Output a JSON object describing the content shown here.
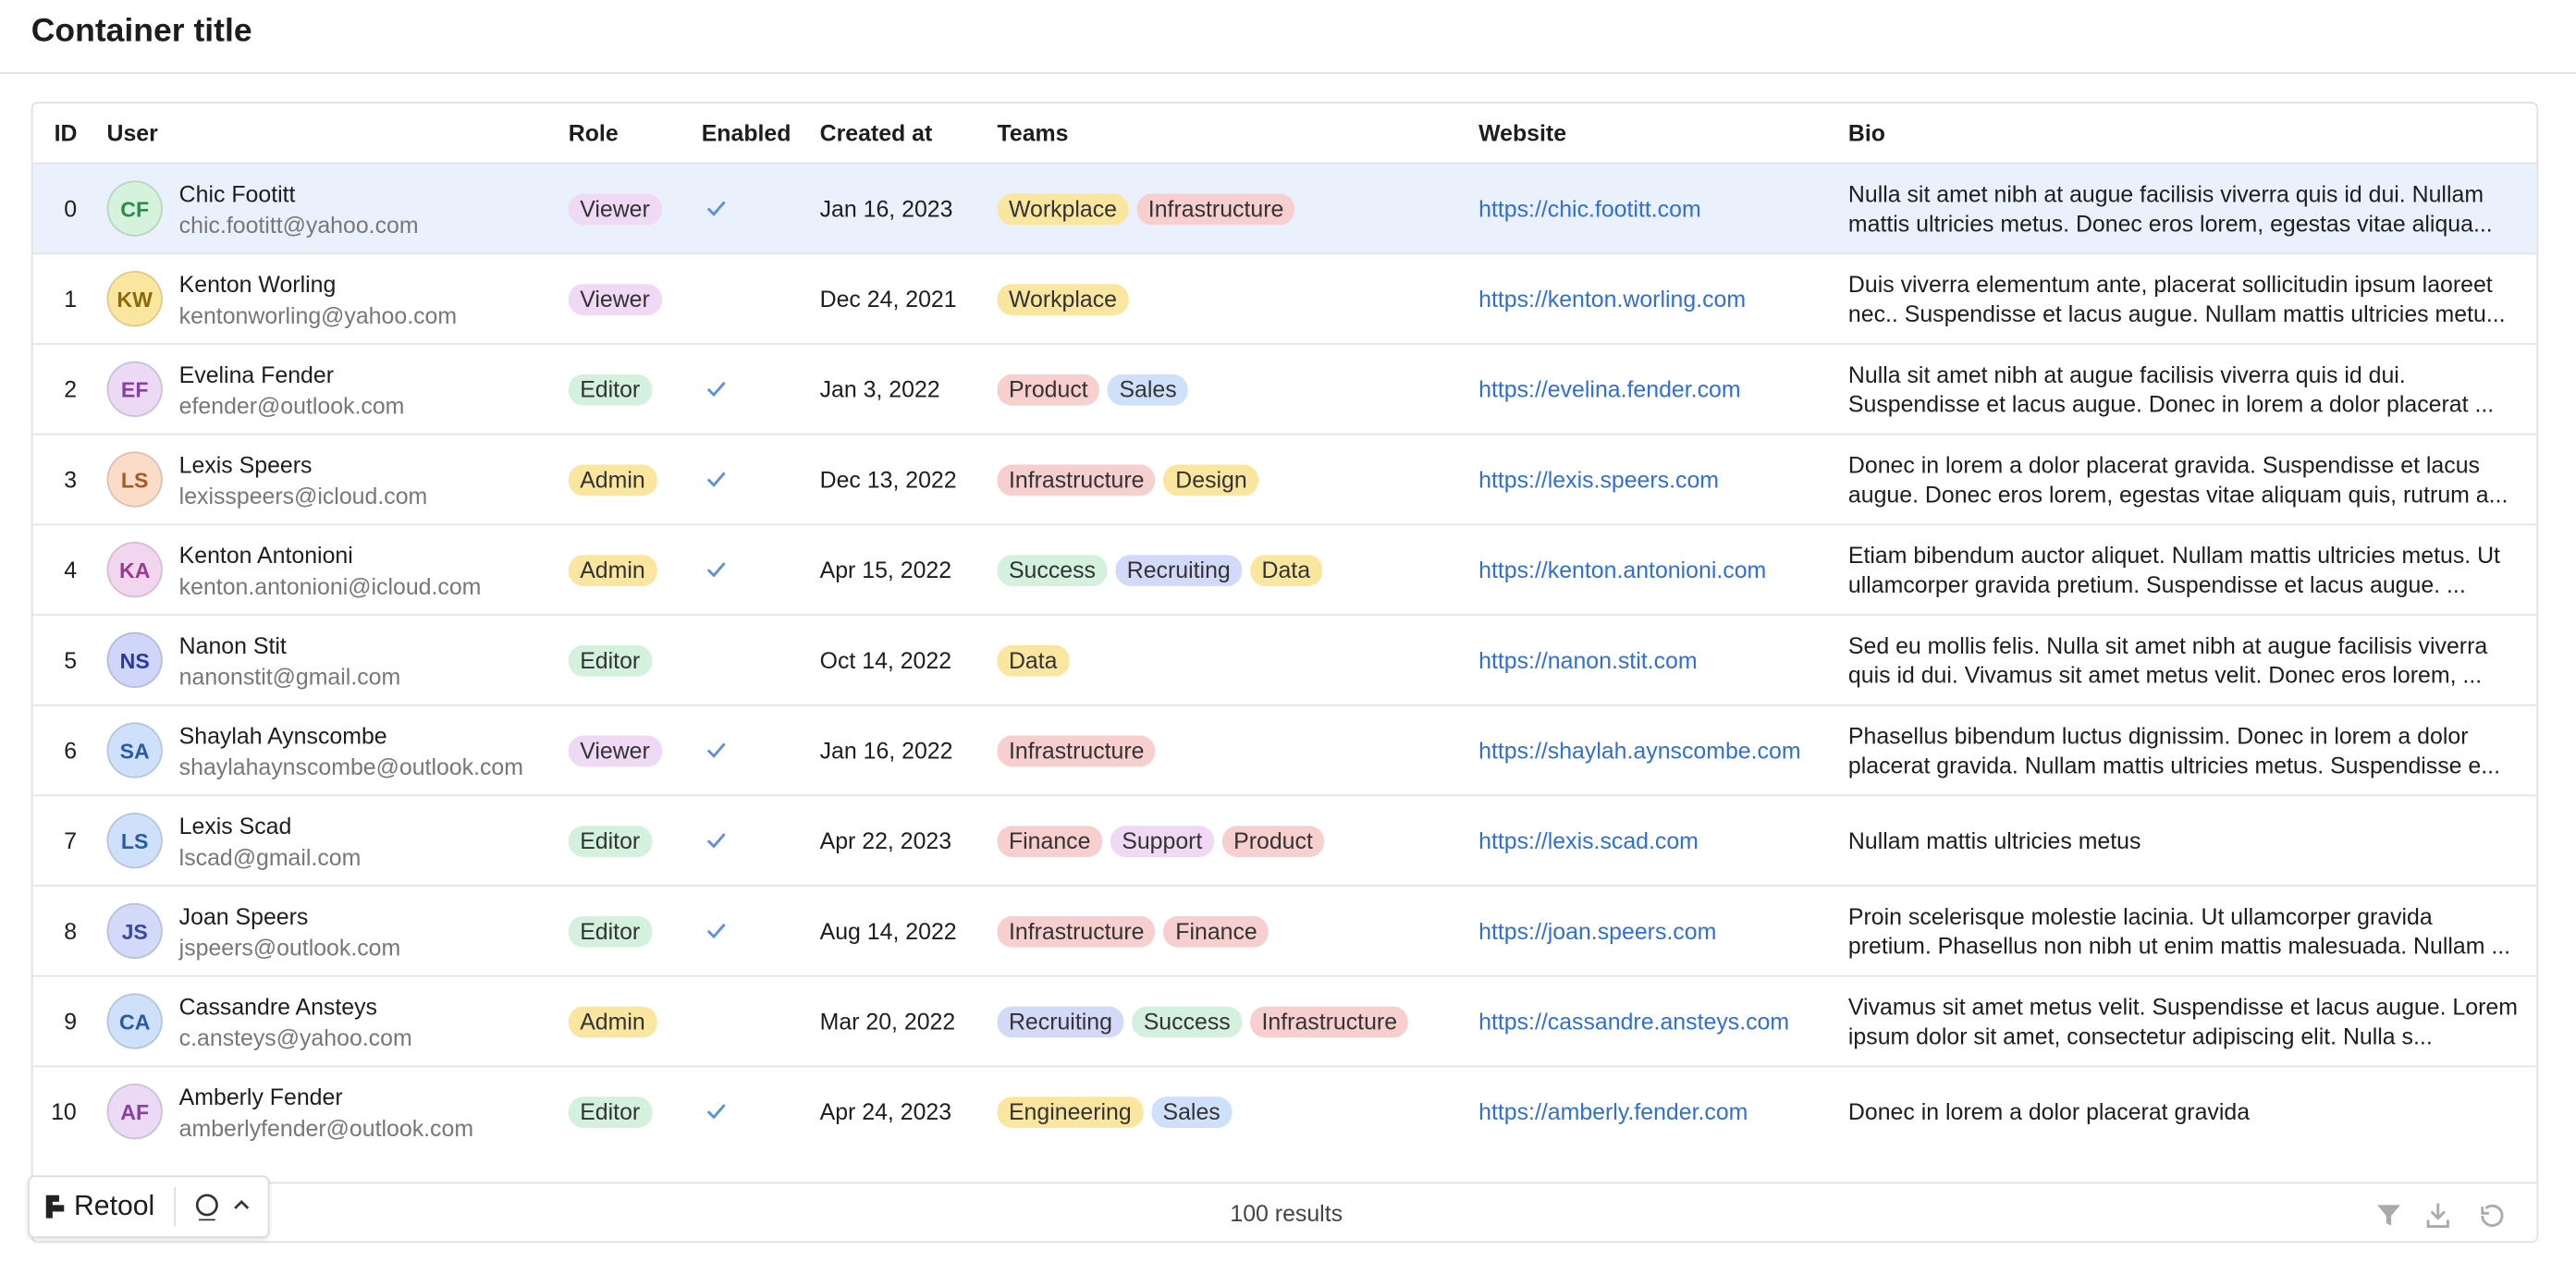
{
  "header": {
    "title": "Container title"
  },
  "table": {
    "columns": [
      "ID",
      "User",
      "Role",
      "Enabled",
      "Created at",
      "Teams",
      "Website",
      "Bio"
    ],
    "rows": [
      {
        "id": "0",
        "initials": "CF",
        "color": "#d5f2dc",
        "ink": "#2d8a4a",
        "name": "Chic Footitt",
        "email": "chic.footitt@yahoo.com",
        "role": {
          "text": "Viewer",
          "color": "#f0d9f5"
        },
        "enabled": true,
        "created": "Jan 16, 2023",
        "teams": [
          {
            "text": "Workplace",
            "color": "#fbe6a0"
          },
          {
            "text": "Infrastructure",
            "color": "#f8cfcf"
          }
        ],
        "website": "https://chic.footitt.com",
        "bio": "Nulla sit amet nibh at augue facilisis viverra quis id dui. Nullam mattis ultricies metus. Donec eros lorem, egestas vitae aliqua..."
      },
      {
        "id": "1",
        "initials": "KW",
        "color": "#fbe6a0",
        "ink": "#8a6a10",
        "name": "Kenton Worling",
        "email": "kentonworling@yahoo.com",
        "role": {
          "text": "Viewer",
          "color": "#f0d9f5"
        },
        "enabled": false,
        "created": "Dec 24, 2021",
        "teams": [
          {
            "text": "Workplace",
            "color": "#fbe6a0"
          }
        ],
        "website": "https://kenton.worling.com",
        "bio": "Duis viverra elementum ante, placerat sollicitudin ipsum laoreet nec.. Suspendisse et lacus augue. Nullam mattis ultricies metu..."
      },
      {
        "id": "2",
        "initials": "EF",
        "color": "#ecd9f5",
        "ink": "#8a3fa8",
        "name": "Evelina Fender",
        "email": "efender@outlook.com",
        "role": {
          "text": "Editor",
          "color": "#d3f1dc"
        },
        "enabled": true,
        "created": "Jan 3, 2022",
        "teams": [
          {
            "text": "Product",
            "color": "#f8cfcf"
          },
          {
            "text": "Sales",
            "color": "#cfe0fa"
          }
        ],
        "website": "https://evelina.fender.com",
        "bio": "Nulla sit amet nibh at augue facilisis viverra quis id dui. Suspendisse et lacus augue. Donec in lorem a dolor placerat ..."
      },
      {
        "id": "3",
        "initials": "LS",
        "color": "#fbdcc8",
        "ink": "#a85a20",
        "name": "Lexis Speers",
        "email": "lexisspeers@icloud.com",
        "role": {
          "text": "Admin",
          "color": "#fbe6a0"
        },
        "enabled": true,
        "created": "Dec 13, 2022",
        "teams": [
          {
            "text": "Infrastructure",
            "color": "#f8cfcf"
          },
          {
            "text": "Design",
            "color": "#fbe6a0"
          }
        ],
        "website": "https://lexis.speers.com",
        "bio": "Donec in lorem a dolor placerat gravida. Suspendisse et lacus augue. Donec eros lorem, egestas vitae aliquam quis, rutrum a..."
      },
      {
        "id": "4",
        "initials": "KA",
        "color": "#f2d6f0",
        "ink": "#9a3a8e",
        "name": "Kenton Antonioni",
        "email": "kenton.antonioni@icloud.com",
        "role": {
          "text": "Admin",
          "color": "#fbe6a0"
        },
        "enabled": true,
        "created": "Apr 15, 2022",
        "teams": [
          {
            "text": "Success",
            "color": "#d3f1dc"
          },
          {
            "text": "Recruiting",
            "color": "#d3d9f8"
          },
          {
            "text": "Data",
            "color": "#fbe6a0"
          }
        ],
        "website": "https://kenton.antonioni.com",
        "bio": "Etiam bibendum auctor aliquet. Nullam mattis ultricies metus. Ut ullamcorper gravida pretium. Suspendisse et lacus augue. ..."
      },
      {
        "id": "5",
        "initials": "NS",
        "color": "#cfd6fa",
        "ink": "#2a3a9a",
        "name": "Nanon Stit",
        "email": "nanonstit@gmail.com",
        "role": {
          "text": "Editor",
          "color": "#d3f1dc"
        },
        "enabled": false,
        "created": "Oct 14, 2022",
        "teams": [
          {
            "text": "Data",
            "color": "#fbe6a0"
          }
        ],
        "website": "https://nanon.stit.com",
        "bio": "Sed eu mollis felis. Nulla sit amet nibh at augue facilisis viverra quis id dui. Vivamus sit amet metus velit. Donec eros lorem, ..."
      },
      {
        "id": "6",
        "initials": "SA",
        "color": "#cfe0fa",
        "ink": "#2a5aa8",
        "name": "Shaylah Aynscombe",
        "email": "shaylahaynscombe@outlook.com",
        "role": {
          "text": "Viewer",
          "color": "#f0d9f5"
        },
        "enabled": true,
        "created": "Jan 16, 2022",
        "teams": [
          {
            "text": "Infrastructure",
            "color": "#f8cfcf"
          }
        ],
        "website": "https://shaylah.aynscombe.com",
        "bio": "Phasellus bibendum luctus dignissim. Donec in lorem a dolor placerat gravida. Nullam mattis ultricies metus. Suspendisse e..."
      },
      {
        "id": "7",
        "initials": "LS",
        "color": "#cfe0fa",
        "ink": "#2a5aa8",
        "name": "Lexis Scad",
        "email": "lscad@gmail.com",
        "role": {
          "text": "Editor",
          "color": "#d3f1dc"
        },
        "enabled": true,
        "created": "Apr 22, 2023",
        "teams": [
          {
            "text": "Finance",
            "color": "#f8cfcf"
          },
          {
            "text": "Support",
            "color": "#f0d9f5"
          },
          {
            "text": "Product",
            "color": "#f8cfcf"
          }
        ],
        "website": "https://lexis.scad.com",
        "bio": "Nullam mattis ultricies metus"
      },
      {
        "id": "8",
        "initials": "JS",
        "color": "#d3d9f8",
        "ink": "#3a48a0",
        "name": "Joan Speers",
        "email": "jspeers@outlook.com",
        "role": {
          "text": "Editor",
          "color": "#d3f1dc"
        },
        "enabled": true,
        "created": "Aug 14, 2022",
        "teams": [
          {
            "text": "Infrastructure",
            "color": "#f8cfcf"
          },
          {
            "text": "Finance",
            "color": "#f8cfcf"
          }
        ],
        "website": "https://joan.speers.com",
        "bio": "Proin scelerisque molestie lacinia. Ut ullamcorper gravida pretium. Phasellus non nibh ut enim mattis malesuada. Nullam ..."
      },
      {
        "id": "9",
        "initials": "CA",
        "color": "#cfe0fa",
        "ink": "#2a5aa8",
        "name": "Cassandre Ansteys",
        "email": "c.ansteys@yahoo.com",
        "role": {
          "text": "Admin",
          "color": "#fbe6a0"
        },
        "enabled": false,
        "created": "Mar 20, 2022",
        "teams": [
          {
            "text": "Recruiting",
            "color": "#d3d9f8"
          },
          {
            "text": "Success",
            "color": "#d3f1dc"
          },
          {
            "text": "Infrastructure",
            "color": "#f8cfcf"
          }
        ],
        "website": "https://cassandre.ansteys.com",
        "bio": "Vivamus sit amet metus velit. Suspendisse et lacus augue. Lorem ipsum dolor sit amet, consectetur adipiscing elit. Nulla s..."
      },
      {
        "id": "10",
        "initials": "AF",
        "color": "#ecd9f5",
        "ink": "#8a3fa8",
        "name": "Amberly Fender",
        "email": "amberlyfender@outlook.com",
        "role": {
          "text": "Editor",
          "color": "#d3f1dc"
        },
        "enabled": true,
        "created": "Apr 24, 2023",
        "teams": [
          {
            "text": "Engineering",
            "color": "#fbe6a0"
          },
          {
            "text": "Sales",
            "color": "#cfe0fa"
          }
        ],
        "website": "https://amberly.fender.com",
        "bio": "Donec in lorem a dolor placerat gravida"
      }
    ],
    "footer": "100 results"
  },
  "badge": {
    "label": "Retool"
  }
}
